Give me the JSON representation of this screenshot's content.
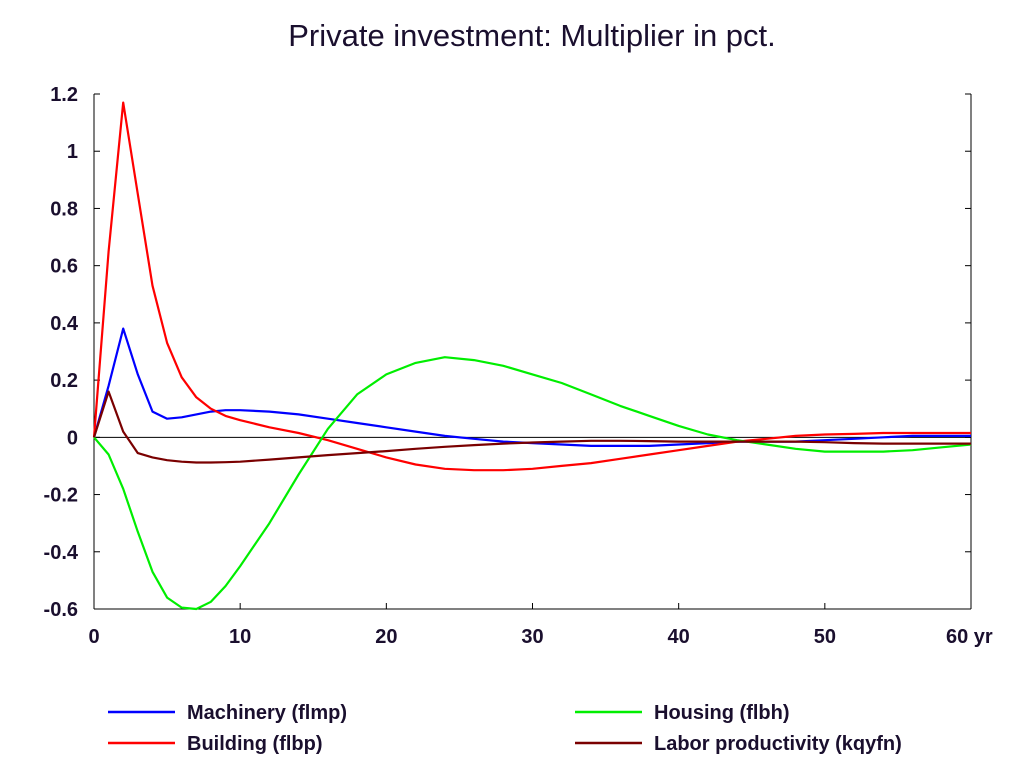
{
  "chart_data": {
    "type": "line",
    "title": "Private investment: Multiplier in pct.",
    "x_unit_label": "yr",
    "xlim": [
      0,
      60
    ],
    "ylim": [
      -0.6,
      1.2
    ],
    "x_ticks": [
      0,
      10,
      20,
      30,
      40,
      50,
      60
    ],
    "x_tick_labels": [
      "0",
      "10",
      "20",
      "30",
      "40",
      "50",
      "60 yr"
    ],
    "y_ticks": [
      -0.6,
      -0.4,
      -0.2,
      0,
      0.2,
      0.4,
      0.6,
      0.8,
      1,
      1.2
    ],
    "y_tick_labels": [
      "-0.6",
      "-0.4",
      "-0.2",
      "0",
      "0.2",
      "0.4",
      "0.6",
      "0.8",
      "1",
      "1.2"
    ],
    "grid": false,
    "zero_line": true,
    "legend_position": "bottom",
    "series": [
      {
        "name": "Machinery (flmp)",
        "color": "#0000ff",
        "x": [
          0,
          1,
          2,
          3,
          4,
          5,
          6,
          7,
          8,
          9,
          10,
          12,
          14,
          16,
          18,
          20,
          22,
          24,
          26,
          28,
          30,
          32,
          34,
          36,
          38,
          40,
          42,
          44,
          46,
          48,
          50,
          52,
          54,
          56,
          58,
          60
        ],
        "values": [
          0,
          0.18,
          0.38,
          0.22,
          0.09,
          0.065,
          0.07,
          0.08,
          0.09,
          0.095,
          0.095,
          0.09,
          0.08,
          0.065,
          0.05,
          0.035,
          0.02,
          0.005,
          -0.005,
          -0.015,
          -0.02,
          -0.025,
          -0.03,
          -0.03,
          -0.03,
          -0.025,
          -0.02,
          -0.015,
          -0.015,
          -0.015,
          -0.01,
          -0.005,
          0,
          0.005,
          0.005,
          0.005
        ]
      },
      {
        "name": "Building (flbp)",
        "color": "#ff0000",
        "x": [
          0,
          1,
          2,
          3,
          4,
          5,
          6,
          7,
          8,
          9,
          10,
          12,
          14,
          16,
          18,
          20,
          22,
          24,
          26,
          28,
          30,
          32,
          34,
          36,
          38,
          40,
          42,
          44,
          46,
          48,
          50,
          52,
          54,
          56,
          58,
          60
        ],
        "values": [
          0,
          0.65,
          1.17,
          0.85,
          0.53,
          0.33,
          0.21,
          0.14,
          0.1,
          0.075,
          0.06,
          0.035,
          0.015,
          -0.01,
          -0.04,
          -0.07,
          -0.095,
          -0.11,
          -0.115,
          -0.115,
          -0.11,
          -0.1,
          -0.09,
          -0.075,
          -0.06,
          -0.045,
          -0.03,
          -0.015,
          -0.005,
          0.005,
          0.01,
          0.012,
          0.015,
          0.015,
          0.015,
          0.015
        ]
      },
      {
        "name": "Housing (flbh)",
        "color": "#00ee00",
        "x": [
          0,
          1,
          2,
          3,
          4,
          5,
          6,
          7,
          8,
          9,
          10,
          12,
          14,
          16,
          18,
          20,
          22,
          24,
          26,
          28,
          30,
          32,
          34,
          36,
          38,
          40,
          42,
          44,
          46,
          48,
          50,
          52,
          54,
          56,
          58,
          60
        ],
        "values": [
          0,
          -0.06,
          -0.18,
          -0.33,
          -0.47,
          -0.56,
          -0.595,
          -0.6,
          -0.575,
          -0.52,
          -0.45,
          -0.3,
          -0.13,
          0.03,
          0.15,
          0.22,
          0.26,
          0.28,
          0.27,
          0.25,
          0.22,
          0.19,
          0.15,
          0.11,
          0.075,
          0.04,
          0.01,
          -0.01,
          -0.025,
          -0.04,
          -0.05,
          -0.05,
          -0.05,
          -0.045,
          -0.035,
          -0.025
        ]
      },
      {
        "name": "Labor productivity (kqyfn)",
        "color": "#7a0000",
        "x": [
          0,
          1,
          2,
          3,
          4,
          5,
          6,
          7,
          8,
          9,
          10,
          12,
          14,
          16,
          18,
          20,
          22,
          24,
          26,
          28,
          30,
          32,
          34,
          36,
          38,
          40,
          42,
          44,
          46,
          48,
          50,
          52,
          54,
          56,
          58,
          60
        ],
        "values": [
          0,
          0.16,
          0.02,
          -0.055,
          -0.07,
          -0.08,
          -0.085,
          -0.088,
          -0.088,
          -0.087,
          -0.085,
          -0.078,
          -0.07,
          -0.062,
          -0.055,
          -0.048,
          -0.04,
          -0.033,
          -0.027,
          -0.022,
          -0.018,
          -0.015,
          -0.012,
          -0.012,
          -0.013,
          -0.015,
          -0.015,
          -0.015,
          -0.015,
          -0.015,
          -0.017,
          -0.02,
          -0.022,
          -0.022,
          -0.022,
          -0.022
        ]
      }
    ]
  }
}
